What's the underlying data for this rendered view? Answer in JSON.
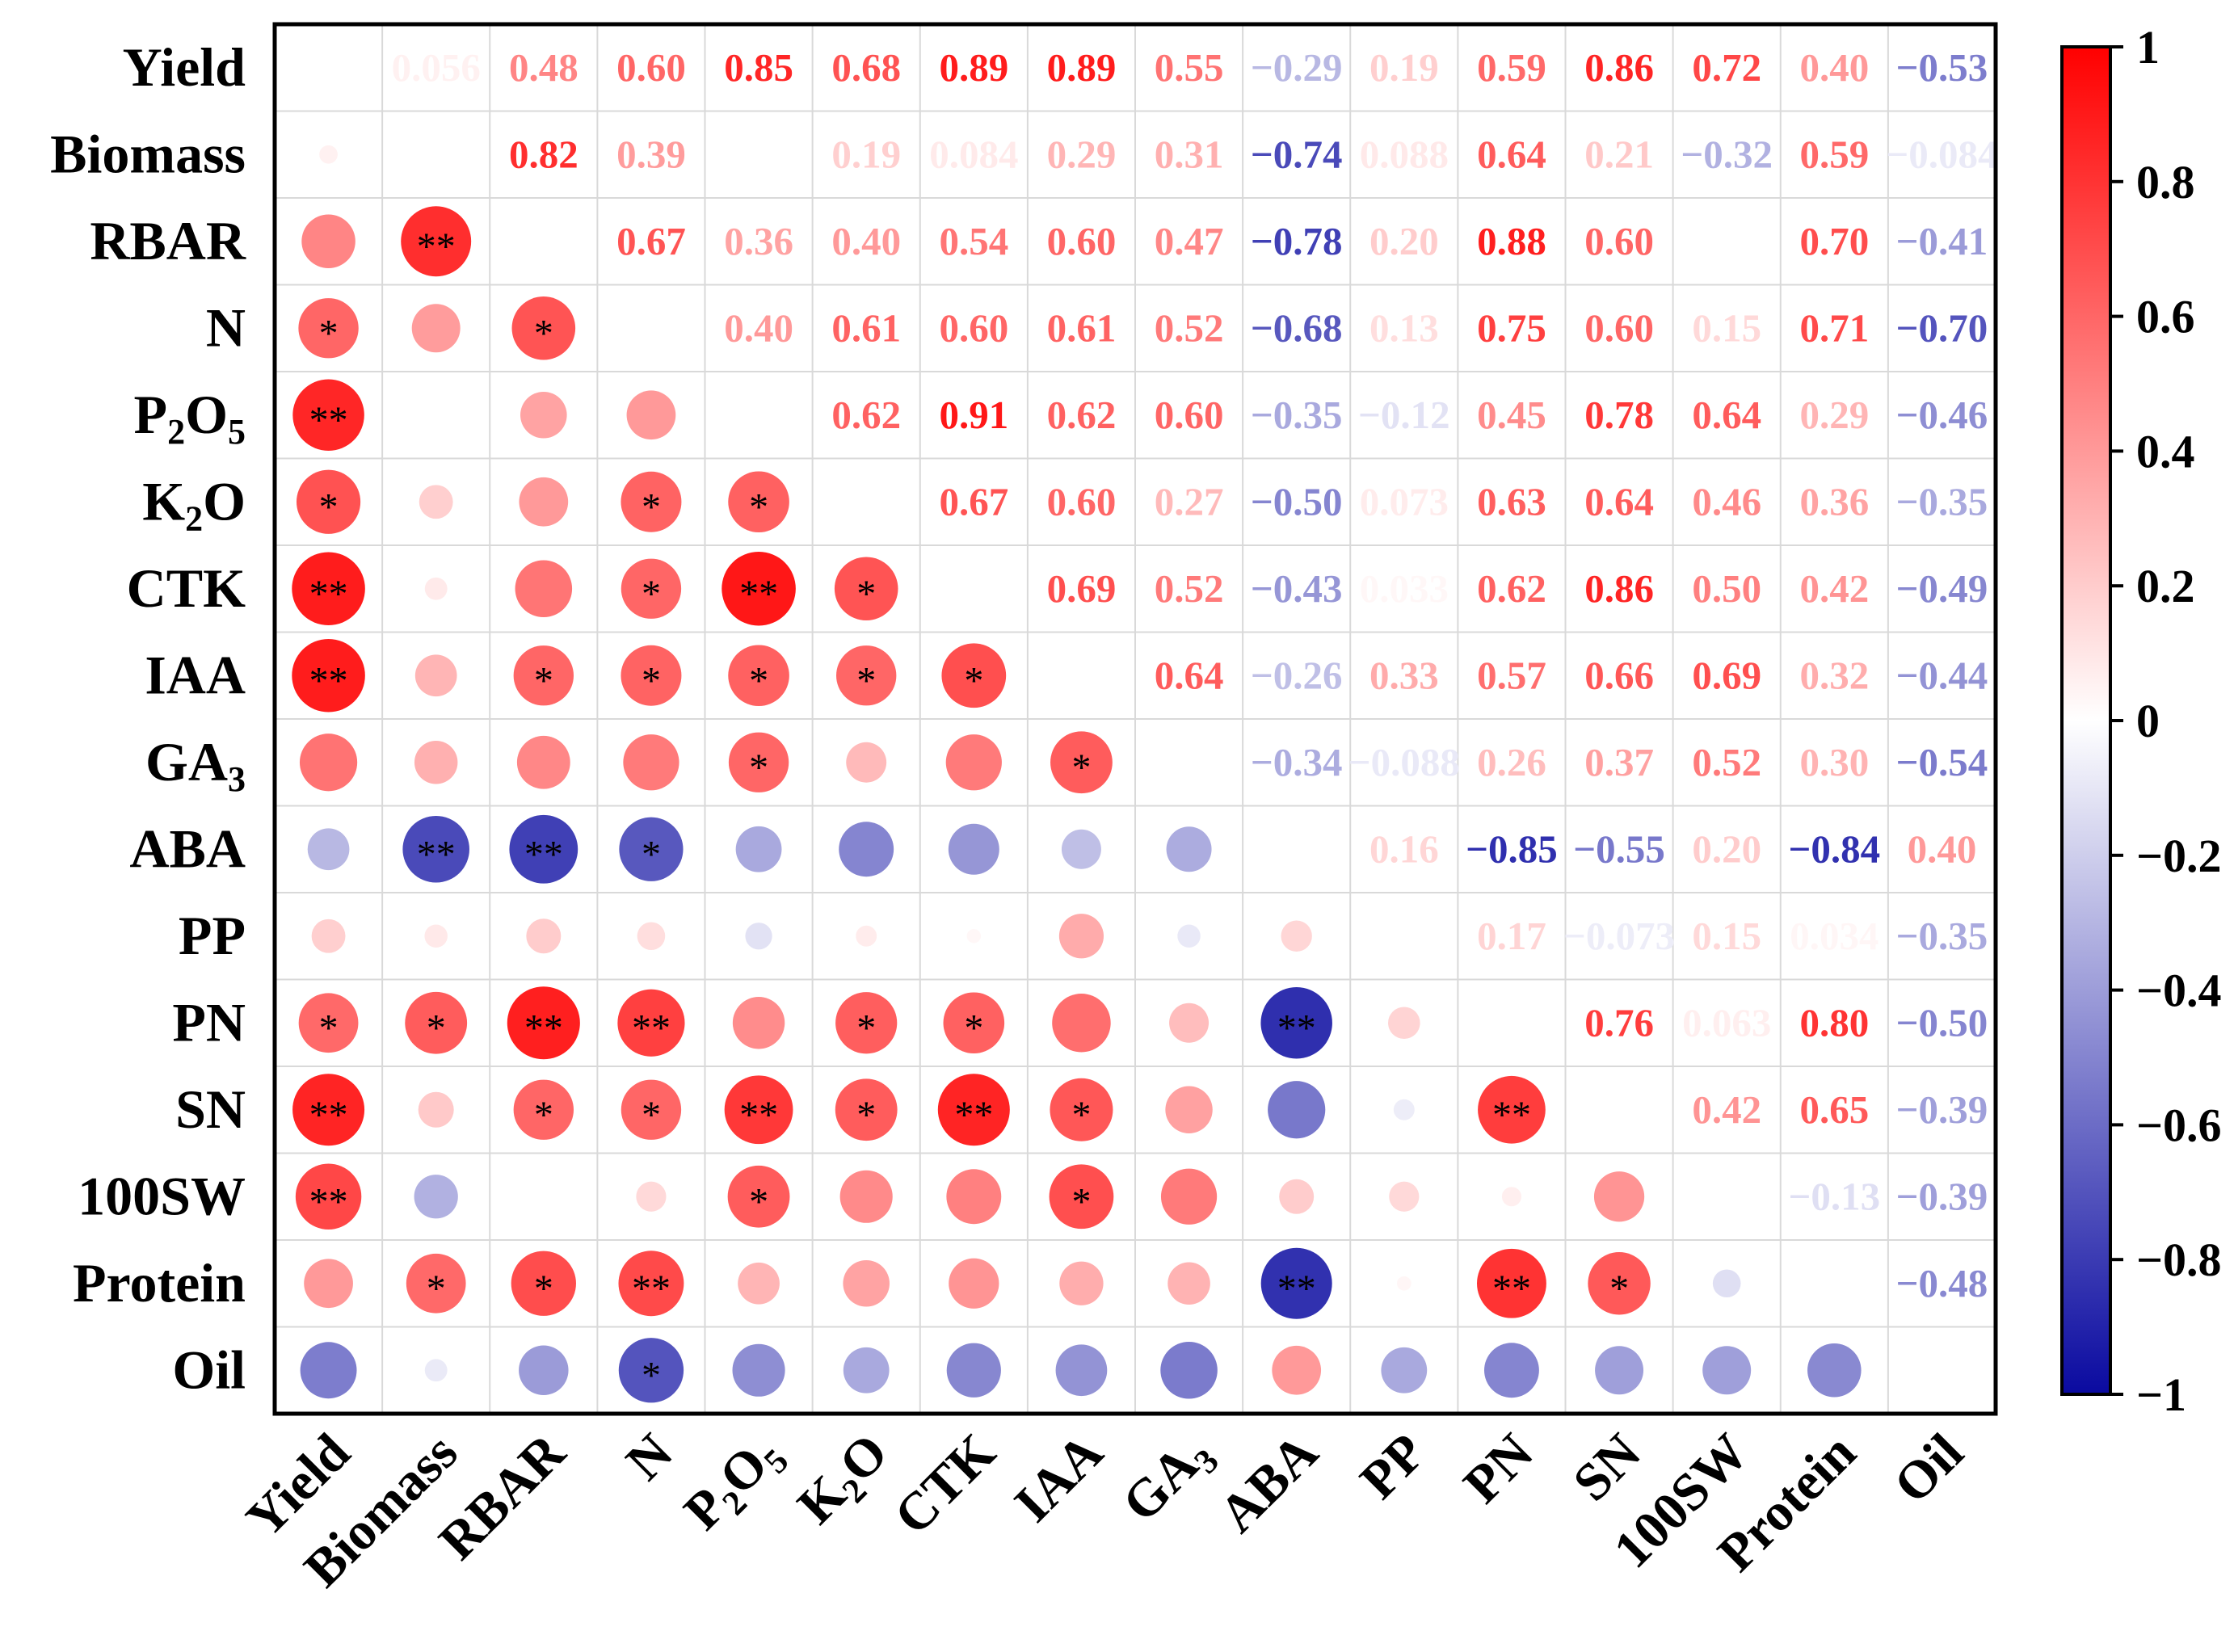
{
  "chart_data": {
    "type": "heatmap",
    "subtype": "correlation-matrix",
    "upper_triangle": "coefficient values",
    "lower_triangle": "circles sized and colored by coefficient, with significance stars",
    "variables": [
      {
        "key": "Yield",
        "parts": [
          {
            "t": "Yield"
          }
        ]
      },
      {
        "key": "Biomass",
        "parts": [
          {
            "t": "Biomass"
          }
        ]
      },
      {
        "key": "RBAR",
        "parts": [
          {
            "t": "RBAR"
          }
        ]
      },
      {
        "key": "N",
        "parts": [
          {
            "t": "N"
          }
        ]
      },
      {
        "key": "P2O5",
        "parts": [
          {
            "t": "P"
          },
          {
            "t": "2",
            "sub": true
          },
          {
            "t": "O"
          },
          {
            "t": "5",
            "sub": true
          }
        ]
      },
      {
        "key": "K2O",
        "parts": [
          {
            "t": "K"
          },
          {
            "t": "2",
            "sub": true
          },
          {
            "t": "O"
          }
        ]
      },
      {
        "key": "CTK",
        "parts": [
          {
            "t": "CTK"
          }
        ]
      },
      {
        "key": "IAA",
        "parts": [
          {
            "t": "IAA"
          }
        ]
      },
      {
        "key": "GA3",
        "parts": [
          {
            "t": "GA"
          },
          {
            "t": "3",
            "sub": true
          }
        ]
      },
      {
        "key": "ABA",
        "parts": [
          {
            "t": "ABA"
          }
        ]
      },
      {
        "key": "PP",
        "parts": [
          {
            "t": "PP"
          }
        ]
      },
      {
        "key": "PN",
        "parts": [
          {
            "t": "PN"
          }
        ]
      },
      {
        "key": "SN",
        "parts": [
          {
            "t": "SN"
          }
        ]
      },
      {
        "key": "100SW",
        "parts": [
          {
            "t": "100SW"
          }
        ]
      },
      {
        "key": "Protein",
        "parts": [
          {
            "t": "Protein"
          }
        ]
      },
      {
        "key": "Oil",
        "parts": [
          {
            "t": "Oil"
          }
        ]
      }
    ],
    "upper": [
      [
        "Yield",
        "Biomass",
        "0.056"
      ],
      [
        "Yield",
        "RBAR",
        "0.48"
      ],
      [
        "Yield",
        "N",
        "0.60"
      ],
      [
        "Yield",
        "P2O5",
        "0.85"
      ],
      [
        "Yield",
        "K2O",
        "0.68"
      ],
      [
        "Yield",
        "CTK",
        "0.89"
      ],
      [
        "Yield",
        "IAA",
        "0.89"
      ],
      [
        "Yield",
        "GA3",
        "0.55"
      ],
      [
        "Yield",
        "ABA",
        "-0.29"
      ],
      [
        "Yield",
        "PP",
        "0.19"
      ],
      [
        "Yield",
        "PN",
        "0.59"
      ],
      [
        "Yield",
        "SN",
        "0.86"
      ],
      [
        "Yield",
        "100SW",
        "0.72"
      ],
      [
        "Yield",
        "Protein",
        "0.40"
      ],
      [
        "Yield",
        "Oil",
        "-0.53"
      ],
      [
        "Biomass",
        "RBAR",
        "0.82"
      ],
      [
        "Biomass",
        "N",
        "0.39"
      ],
      [
        "Biomass",
        "K2O",
        "0.19"
      ],
      [
        "Biomass",
        "CTK",
        "0.084"
      ],
      [
        "Biomass",
        "IAA",
        "0.29"
      ],
      [
        "Biomass",
        "GA3",
        "0.31"
      ],
      [
        "Biomass",
        "ABA",
        "-0.74"
      ],
      [
        "Biomass",
        "PP",
        "0.088"
      ],
      [
        "Biomass",
        "PN",
        "0.64"
      ],
      [
        "Biomass",
        "SN",
        "0.21"
      ],
      [
        "Biomass",
        "100SW",
        "-0.32"
      ],
      [
        "Biomass",
        "Protein",
        "0.59"
      ],
      [
        "Biomass",
        "Oil",
        "-0.084"
      ],
      [
        "RBAR",
        "N",
        "0.67"
      ],
      [
        "RBAR",
        "P2O5",
        "0.36"
      ],
      [
        "RBAR",
        "K2O",
        "0.40"
      ],
      [
        "RBAR",
        "CTK",
        "0.54"
      ],
      [
        "RBAR",
        "IAA",
        "0.60"
      ],
      [
        "RBAR",
        "GA3",
        "0.47"
      ],
      [
        "RBAR",
        "ABA",
        "-0.78"
      ],
      [
        "RBAR",
        "PP",
        "0.20"
      ],
      [
        "RBAR",
        "PN",
        "0.88"
      ],
      [
        "RBAR",
        "SN",
        "0.60"
      ],
      [
        "RBAR",
        "Protein",
        "0.70"
      ],
      [
        "RBAR",
        "Oil",
        "-0.41"
      ],
      [
        "N",
        "P2O5",
        "0.40"
      ],
      [
        "N",
        "K2O",
        "0.61"
      ],
      [
        "N",
        "CTK",
        "0.60"
      ],
      [
        "N",
        "IAA",
        "0.61"
      ],
      [
        "N",
        "GA3",
        "0.52"
      ],
      [
        "N",
        "ABA",
        "-0.68"
      ],
      [
        "N",
        "PP",
        "0.13"
      ],
      [
        "N",
        "PN",
        "0.75"
      ],
      [
        "N",
        "SN",
        "0.60"
      ],
      [
        "N",
        "100SW",
        "0.15"
      ],
      [
        "N",
        "Protein",
        "0.71"
      ],
      [
        "N",
        "Oil",
        "-0.70"
      ],
      [
        "P2O5",
        "K2O",
        "0.62"
      ],
      [
        "P2O5",
        "CTK",
        "0.91"
      ],
      [
        "P2O5",
        "IAA",
        "0.62"
      ],
      [
        "P2O5",
        "GA3",
        "0.60"
      ],
      [
        "P2O5",
        "ABA",
        "-0.35"
      ],
      [
        "P2O5",
        "PP",
        "-0.12"
      ],
      [
        "P2O5",
        "PN",
        "0.45"
      ],
      [
        "P2O5",
        "SN",
        "0.78"
      ],
      [
        "P2O5",
        "100SW",
        "0.64"
      ],
      [
        "P2O5",
        "Protein",
        "0.29"
      ],
      [
        "P2O5",
        "Oil",
        "-0.46"
      ],
      [
        "K2O",
        "CTK",
        "0.67"
      ],
      [
        "K2O",
        "IAA",
        "0.60"
      ],
      [
        "K2O",
        "GA3",
        "0.27"
      ],
      [
        "K2O",
        "ABA",
        "-0.50"
      ],
      [
        "K2O",
        "PP",
        "0.073"
      ],
      [
        "K2O",
        "PN",
        "0.63"
      ],
      [
        "K2O",
        "SN",
        "0.64"
      ],
      [
        "K2O",
        "100SW",
        "0.46"
      ],
      [
        "K2O",
        "Protein",
        "0.36"
      ],
      [
        "K2O",
        "Oil",
        "-0.35"
      ],
      [
        "CTK",
        "IAA",
        "0.69"
      ],
      [
        "CTK",
        "GA3",
        "0.52"
      ],
      [
        "CTK",
        "ABA",
        "-0.43"
      ],
      [
        "CTK",
        "PP",
        "0.033"
      ],
      [
        "CTK",
        "PN",
        "0.62"
      ],
      [
        "CTK",
        "SN",
        "0.86"
      ],
      [
        "CTK",
        "100SW",
        "0.50"
      ],
      [
        "CTK",
        "Protein",
        "0.42"
      ],
      [
        "CTK",
        "Oil",
        "-0.49"
      ],
      [
        "IAA",
        "GA3",
        "0.64"
      ],
      [
        "IAA",
        "ABA",
        "-0.26"
      ],
      [
        "IAA",
        "PP",
        "0.33"
      ],
      [
        "IAA",
        "PN",
        "0.57"
      ],
      [
        "IAA",
        "SN",
        "0.66"
      ],
      [
        "IAA",
        "100SW",
        "0.69"
      ],
      [
        "IAA",
        "Protein",
        "0.32"
      ],
      [
        "IAA",
        "Oil",
        "-0.44"
      ],
      [
        "GA3",
        "ABA",
        "-0.34"
      ],
      [
        "GA3",
        "PP",
        "-0.088"
      ],
      [
        "GA3",
        "PN",
        "0.26"
      ],
      [
        "GA3",
        "SN",
        "0.37"
      ],
      [
        "GA3",
        "100SW",
        "0.52"
      ],
      [
        "GA3",
        "Protein",
        "0.30"
      ],
      [
        "GA3",
        "Oil",
        "-0.54"
      ],
      [
        "ABA",
        "PP",
        "0.16"
      ],
      [
        "ABA",
        "PN",
        "-0.85"
      ],
      [
        "ABA",
        "SN",
        "-0.55"
      ],
      [
        "ABA",
        "100SW",
        "0.20"
      ],
      [
        "ABA",
        "Protein",
        "-0.84"
      ],
      [
        "ABA",
        "Oil",
        "0.40"
      ],
      [
        "PP",
        "PN",
        "0.17"
      ],
      [
        "PP",
        "SN",
        "-0.073"
      ],
      [
        "PP",
        "100SW",
        "0.15"
      ],
      [
        "PP",
        "Protein",
        "0.034"
      ],
      [
        "PP",
        "Oil",
        "-0.35"
      ],
      [
        "PN",
        "SN",
        "0.76"
      ],
      [
        "PN",
        "100SW",
        "0.063"
      ],
      [
        "PN",
        "Protein",
        "0.80"
      ],
      [
        "PN",
        "Oil",
        "-0.50"
      ],
      [
        "SN",
        "100SW",
        "0.42"
      ],
      [
        "SN",
        "Protein",
        "0.65"
      ],
      [
        "SN",
        "Oil",
        "-0.39"
      ],
      [
        "100SW",
        "Protein",
        "-0.13"
      ],
      [
        "100SW",
        "Oil",
        "-0.39"
      ],
      [
        "Protein",
        "Oil",
        "-0.48"
      ]
    ],
    "stars": [
      [
        "RBAR",
        "Biomass",
        "**"
      ],
      [
        "N",
        "Yield",
        "*"
      ],
      [
        "N",
        "RBAR",
        "*"
      ],
      [
        "P2O5",
        "Yield",
        "**"
      ],
      [
        "K2O",
        "Yield",
        "*"
      ],
      [
        "K2O",
        "N",
        "*"
      ],
      [
        "K2O",
        "P2O5",
        "*"
      ],
      [
        "CTK",
        "Yield",
        "**"
      ],
      [
        "CTK",
        "N",
        "*"
      ],
      [
        "CTK",
        "P2O5",
        "**"
      ],
      [
        "CTK",
        "K2O",
        "*"
      ],
      [
        "IAA",
        "Yield",
        "**"
      ],
      [
        "IAA",
        "RBAR",
        "*"
      ],
      [
        "IAA",
        "N",
        "*"
      ],
      [
        "IAA",
        "P2O5",
        "*"
      ],
      [
        "IAA",
        "K2O",
        "*"
      ],
      [
        "IAA",
        "CTK",
        "*"
      ],
      [
        "GA3",
        "P2O5",
        "*"
      ],
      [
        "GA3",
        "IAA",
        "*"
      ],
      [
        "ABA",
        "Biomass",
        "**"
      ],
      [
        "ABA",
        "RBAR",
        "**"
      ],
      [
        "ABA",
        "N",
        "*"
      ],
      [
        "PN",
        "Yield",
        "*"
      ],
      [
        "PN",
        "Biomass",
        "*"
      ],
      [
        "PN",
        "RBAR",
        "**"
      ],
      [
        "PN",
        "N",
        "**"
      ],
      [
        "PN",
        "K2O",
        "*"
      ],
      [
        "PN",
        "CTK",
        "*"
      ],
      [
        "PN",
        "ABA",
        "**"
      ],
      [
        "SN",
        "Yield",
        "**"
      ],
      [
        "SN",
        "RBAR",
        "*"
      ],
      [
        "SN",
        "N",
        "*"
      ],
      [
        "SN",
        "P2O5",
        "**"
      ],
      [
        "SN",
        "K2O",
        "*"
      ],
      [
        "SN",
        "CTK",
        "**"
      ],
      [
        "SN",
        "IAA",
        "*"
      ],
      [
        "SN",
        "PN",
        "**"
      ],
      [
        "100SW",
        "Yield",
        "**"
      ],
      [
        "100SW",
        "P2O5",
        "*"
      ],
      [
        "100SW",
        "IAA",
        "*"
      ],
      [
        "Protein",
        "Biomass",
        "*"
      ],
      [
        "Protein",
        "RBAR",
        "*"
      ],
      [
        "Protein",
        "N",
        "**"
      ],
      [
        "Protein",
        "ABA",
        "**"
      ],
      [
        "Protein",
        "PN",
        "**"
      ],
      [
        "Protein",
        "SN",
        "*"
      ],
      [
        "Oil",
        "N",
        "*"
      ]
    ],
    "colorbar": {
      "range": [
        -1,
        1
      ],
      "ticks": [
        "1",
        "0.8",
        "0.6",
        "0.4",
        "0.2",
        "0",
        "-0.2",
        "-0.4",
        "-0.6",
        "-0.8",
        "-1"
      ],
      "tick_values": [
        1,
        0.8,
        0.6,
        0.4,
        0.2,
        0,
        -0.2,
        -0.4,
        -0.6,
        -0.8,
        -1
      ],
      "colors": {
        "negative": "#0a0aa0",
        "zero": "#ffffff",
        "positive": "#ff0000"
      }
    },
    "grid": true,
    "legend_position": "right"
  }
}
